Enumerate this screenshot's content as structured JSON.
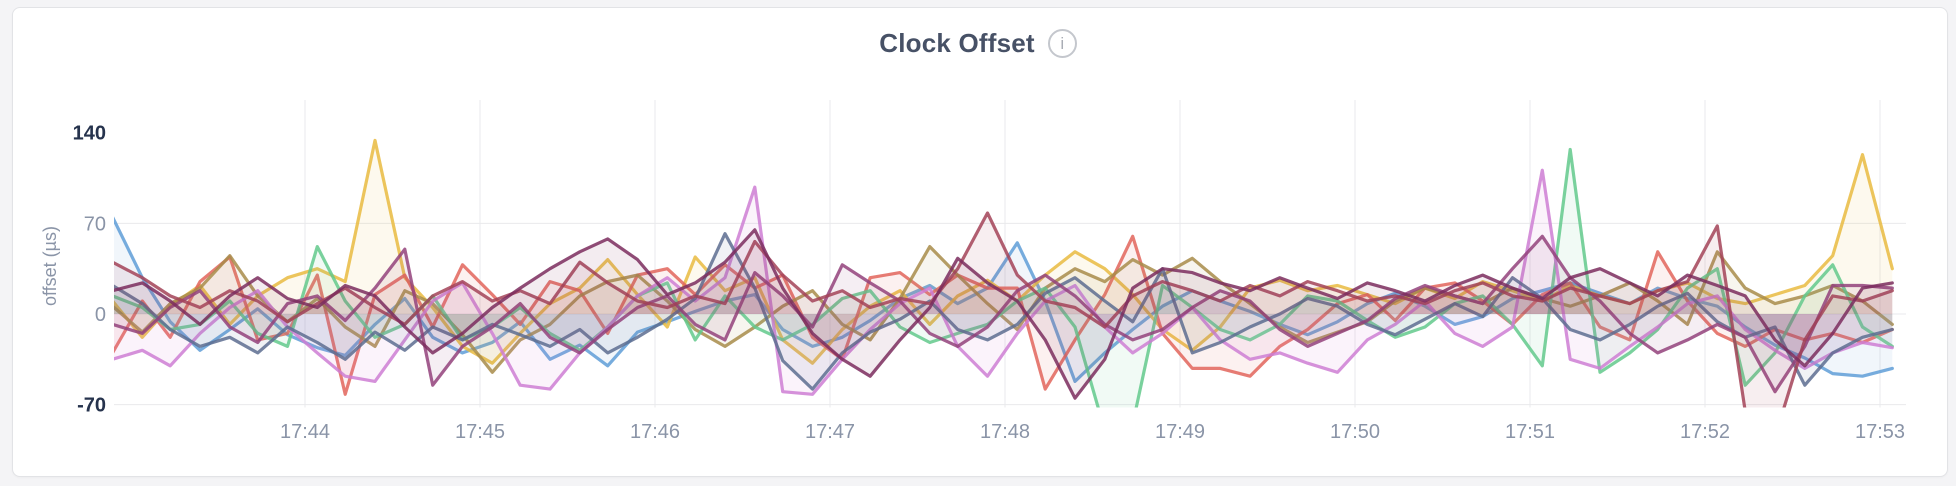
{
  "header": {
    "title": "Clock Offset",
    "info_icon": "i"
  },
  "chart_data": {
    "type": "line",
    "title": "Clock Offset",
    "xlabel": "",
    "ylabel": "offset (µs)",
    "legend": "none",
    "grid": true,
    "xlim_minutes_after_17h": [
      42.9,
      53.15
    ],
    "ylim": [
      -70,
      140
    ],
    "x_ticks": [
      {
        "value": 44,
        "label": "17:44"
      },
      {
        "value": 45,
        "label": "17:45"
      },
      {
        "value": 46,
        "label": "17:46"
      },
      {
        "value": 47,
        "label": "17:47"
      },
      {
        "value": 48,
        "label": "17:48"
      },
      {
        "value": 49,
        "label": "17:49"
      },
      {
        "value": 50,
        "label": "17:50"
      },
      {
        "value": 51,
        "label": "17:51"
      },
      {
        "value": 52,
        "label": "17:52"
      },
      {
        "value": 53,
        "label": "17:53"
      }
    ],
    "y_ticks": [
      {
        "value": 140,
        "label": "140",
        "emphasis": true,
        "grid": false
      },
      {
        "value": 70,
        "label": "70",
        "emphasis": false,
        "grid": true
      },
      {
        "value": 0,
        "label": "0",
        "emphasis": false,
        "grid": true
      },
      {
        "value": -70,
        "label": "-70",
        "emphasis": true,
        "grid": true
      }
    ],
    "x_minutes_after_17h": [
      42.9,
      43.07,
      43.23,
      43.4,
      43.57,
      43.73,
      43.9,
      44.07,
      44.23,
      44.4,
      44.57,
      44.73,
      44.9,
      45.07,
      45.23,
      45.4,
      45.57,
      45.73,
      45.9,
      46.07,
      46.23,
      46.4,
      46.57,
      46.73,
      46.9,
      47.07,
      47.23,
      47.4,
      47.57,
      47.73,
      47.9,
      48.07,
      48.23,
      48.4,
      48.57,
      48.73,
      48.9,
      49.07,
      49.23,
      49.4,
      49.57,
      49.73,
      49.9,
      50.07,
      50.23,
      50.4,
      50.57,
      50.73,
      50.9,
      51.07,
      51.23,
      51.4,
      51.57,
      51.73,
      51.9,
      52.07,
      52.23,
      52.4,
      52.57,
      52.73,
      52.9,
      53.07
    ],
    "unit": "µs",
    "series": [
      {
        "name": "series-1-blue",
        "color": "#5f9ed7",
        "values": [
          75,
          28,
          -6,
          -28,
          -12,
          4,
          -16,
          -26,
          -32,
          -8,
          12,
          -18,
          -30,
          -22,
          -6,
          -35,
          -24,
          -40,
          -14,
          -6,
          2,
          10,
          15,
          -12,
          -25,
          -18,
          -5,
          12,
          22,
          8,
          20,
          55,
          10,
          -52,
          -30,
          -12,
          6,
          18,
          10,
          2,
          -8,
          -16,
          -6,
          8,
          16,
          6,
          -8,
          -2,
          12,
          18,
          24,
          16,
          8,
          20,
          12,
          6,
          -10,
          -24,
          -34,
          -46,
          -48,
          -42
        ]
      },
      {
        "name": "series-2-gold",
        "color": "#e9bb41",
        "values": [
          10,
          -18,
          6,
          22,
          -8,
          14,
          28,
          35,
          25,
          134,
          28,
          5,
          -25,
          -38,
          -15,
          8,
          20,
          42,
          15,
          -10,
          44,
          18,
          28,
          -20,
          -38,
          -12,
          6,
          18,
          -8,
          14,
          26,
          10,
          30,
          48,
          35,
          15,
          -12,
          -28,
          -10,
          20,
          26,
          18,
          22,
          15,
          8,
          20,
          12,
          25,
          18,
          10,
          22,
          14,
          8,
          18,
          24,
          12,
          8,
          15,
          22,
          45,
          123,
          35
        ]
      },
      {
        "name": "series-3-salmon",
        "color": "#e2655c",
        "values": [
          -30,
          10,
          -18,
          25,
          44,
          -20,
          -15,
          30,
          -62,
          15,
          30,
          -10,
          38,
          15,
          -8,
          25,
          18,
          -15,
          30,
          35,
          15,
          38,
          20,
          30,
          -18,
          -35,
          28,
          32,
          15,
          30,
          20,
          20,
          -58,
          -20,
          15,
          60,
          -15,
          -42,
          -42,
          -48,
          -25,
          -12,
          8,
          15,
          -5,
          20,
          24,
          10,
          -8,
          15,
          24,
          -10,
          -20,
          48,
          10,
          -15,
          -25,
          -12,
          -20,
          -15,
          -22,
          -12
        ]
      },
      {
        "name": "series-4-olive",
        "color": "#a88c4a",
        "values": [
          6,
          -14,
          8,
          20,
          45,
          14,
          -6,
          12,
          -10,
          -25,
          18,
          8,
          -16,
          -45,
          -20,
          -8,
          14,
          25,
          30,
          10,
          -12,
          -25,
          -10,
          6,
          18,
          -8,
          -20,
          12,
          52,
          30,
          8,
          -12,
          20,
          35,
          25,
          42,
          30,
          43,
          25,
          8,
          -10,
          -22,
          -14,
          -6,
          10,
          20,
          14,
          8,
          20,
          12,
          6,
          14,
          24,
          10,
          -8,
          48,
          20,
          8,
          14,
          22,
          10,
          -8
        ]
      },
      {
        "name": "series-5-green",
        "color": "#63c98c",
        "values": [
          14,
          5,
          -12,
          -8,
          10,
          -15,
          -25,
          52,
          10,
          -18,
          -8,
          14,
          -20,
          -10,
          5,
          -15,
          -28,
          -10,
          14,
          24,
          -20,
          14,
          -10,
          -20,
          -8,
          12,
          18,
          -10,
          -22,
          -15,
          -8,
          10,
          20,
          -10,
          -90,
          -85,
          22,
          5,
          -12,
          -20,
          -8,
          14,
          10,
          -5,
          -18,
          -10,
          8,
          14,
          -8,
          -40,
          127,
          -45,
          -30,
          -12,
          20,
          35,
          -55,
          -30,
          14,
          38,
          -10,
          -25
        ]
      },
      {
        "name": "series-6-orchid",
        "color": "#ce7ed4",
        "values": [
          -35,
          -28,
          -40,
          -15,
          5,
          18,
          -10,
          -30,
          -48,
          -52,
          -20,
          10,
          24,
          -15,
          -55,
          -58,
          -30,
          -10,
          14,
          28,
          10,
          28,
          98,
          -60,
          -62,
          -35,
          -12,
          8,
          20,
          -25,
          -48,
          -15,
          10,
          22,
          -10,
          -30,
          -15,
          5,
          -20,
          -35,
          -30,
          -38,
          -45,
          -20,
          -8,
          10,
          -15,
          -25,
          -10,
          111,
          -35,
          -42,
          -25,
          -10,
          8,
          14,
          -12,
          -28,
          -42,
          -30,
          -22,
          -26
        ]
      },
      {
        "name": "series-7-slate",
        "color": "#5d6d90",
        "values": [
          22,
          8,
          -12,
          -25,
          -18,
          -30,
          -10,
          -22,
          -35,
          -14,
          -28,
          -10,
          -20,
          -8,
          -16,
          -25,
          -12,
          -30,
          -18,
          -4,
          12,
          62,
          20,
          -36,
          -58,
          -30,
          -14,
          -4,
          10,
          -12,
          -20,
          -8,
          16,
          28,
          10,
          -6,
          35,
          -30,
          -22,
          -10,
          0,
          12,
          6,
          -8,
          -16,
          -4,
          8,
          -2,
          28,
          12,
          -12,
          -20,
          -8,
          6,
          16,
          -6,
          -18,
          -10,
          -55,
          -30,
          -18,
          -12
        ]
      },
      {
        "name": "series-8-purple",
        "color": "#93427b",
        "values": [
          -8,
          -15,
          5,
          18,
          -10,
          -22,
          8,
          14,
          -5,
          20,
          50,
          -55,
          -25,
          -10,
          8,
          -18,
          -30,
          -12,
          5,
          14,
          -8,
          -20,
          32,
          14,
          -10,
          38,
          24,
          10,
          -15,
          -25,
          -10,
          18,
          30,
          14,
          -8,
          -20,
          -12,
          5,
          18,
          10,
          -12,
          -25,
          -15,
          -5,
          12,
          22,
          14,
          8,
          35,
          60,
          28,
          10,
          -15,
          -30,
          -20,
          -8,
          -18,
          -60,
          -25,
          22,
          22,
          20
        ]
      },
      {
        "name": "series-9-maroon",
        "color": "#a34358",
        "values": [
          40,
          28,
          14,
          5,
          18,
          10,
          -6,
          8,
          20,
          5,
          -8,
          14,
          25,
          10,
          18,
          8,
          40,
          24,
          10,
          5,
          14,
          8,
          56,
          30,
          10,
          18,
          5,
          12,
          8,
          35,
          78,
          30,
          10,
          5,
          -10,
          14,
          25,
          18,
          10,
          22,
          14,
          25,
          18,
          10,
          14,
          8,
          18,
          24,
          14,
          10,
          20,
          14,
          8,
          18,
          25,
          68,
          -75,
          -95,
          -20,
          14,
          10,
          18
        ]
      },
      {
        "name": "series-10-plum",
        "color": "#7b2d5e",
        "values": [
          18,
          24,
          10,
          -8,
          14,
          28,
          12,
          5,
          22,
          14,
          -10,
          -30,
          -15,
          5,
          20,
          35,
          48,
          58,
          42,
          15,
          24,
          40,
          65,
          20,
          -15,
          -35,
          -48,
          -20,
          5,
          43,
          24,
          10,
          -20,
          -65,
          -35,
          20,
          35,
          32,
          24,
          18,
          28,
          20,
          12,
          24,
          18,
          10,
          22,
          30,
          20,
          12,
          28,
          35,
          24,
          14,
          30,
          22,
          14,
          -20,
          -40,
          -15,
          20,
          24
        ]
      }
    ]
  }
}
